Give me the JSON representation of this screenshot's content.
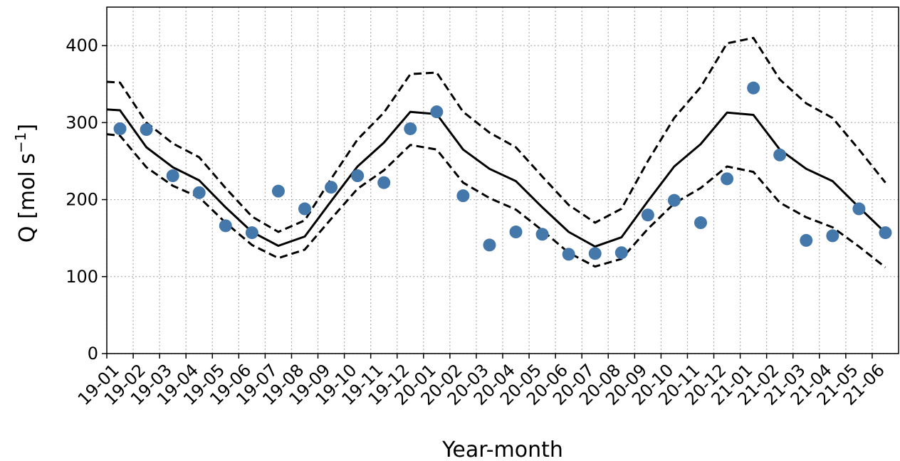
{
  "chart_data": {
    "type": "line",
    "xlabel": "Year-month",
    "ylabel": "Q [mol s",
    "ylabel_exponent": "−1",
    "ylabel_suffix": "]",
    "ylim": [
      0,
      450
    ],
    "yticks": [
      0,
      100,
      200,
      300,
      400
    ],
    "grid": true,
    "x_categories": [
      "19-01",
      "19-02",
      "19-03",
      "19-04",
      "19-05",
      "19-06",
      "19-07",
      "19-08",
      "19-09",
      "19-10",
      "19-11",
      "19-12",
      "20-01",
      "20-02",
      "20-03",
      "20-04",
      "20-05",
      "20-06",
      "20-07",
      "20-08",
      "20-09",
      "20-10",
      "20-11",
      "20-12",
      "21-01",
      "21-02",
      "21-03",
      "21-04",
      "21-05",
      "21-06"
    ],
    "series": [
      {
        "style": "solid-line",
        "color": "#000000",
        "points": [
          [
            0,
            317
          ],
          [
            0.5,
            316
          ],
          [
            1.5,
            268
          ],
          [
            2.5,
            242
          ],
          [
            3.5,
            225
          ],
          [
            4.5,
            190
          ],
          [
            5.5,
            158
          ],
          [
            6.5,
            140
          ],
          [
            7.5,
            152
          ],
          [
            8.5,
            198
          ],
          [
            9.5,
            243
          ],
          [
            10.5,
            274
          ],
          [
            11.5,
            314
          ],
          [
            12.5,
            311
          ],
          [
            13.5,
            265
          ],
          [
            14.5,
            240
          ],
          [
            15.5,
            224
          ],
          [
            16.5,
            190
          ],
          [
            17.5,
            158
          ],
          [
            18.5,
            139
          ],
          [
            19.5,
            151
          ],
          [
            20.5,
            198
          ],
          [
            21.5,
            243
          ],
          [
            22.5,
            272
          ],
          [
            23.5,
            313
          ],
          [
            24.5,
            310
          ],
          [
            25.5,
            265
          ],
          [
            26.5,
            240
          ],
          [
            27.5,
            224
          ],
          [
            28.5,
            190
          ],
          [
            29.5,
            157
          ]
        ]
      },
      {
        "style": "dashed-line",
        "color": "#000000",
        "points": [
          [
            0,
            353
          ],
          [
            0.5,
            352
          ],
          [
            1.5,
            300
          ],
          [
            2.5,
            273
          ],
          [
            3.5,
            255
          ],
          [
            4.5,
            215
          ],
          [
            5.5,
            178
          ],
          [
            6.5,
            158
          ],
          [
            7.5,
            173
          ],
          [
            8.5,
            227
          ],
          [
            9.5,
            278
          ],
          [
            10.5,
            313
          ],
          [
            11.5,
            363
          ],
          [
            12.5,
            365
          ],
          [
            13.5,
            314
          ],
          [
            14.5,
            287
          ],
          [
            15.5,
            268
          ],
          [
            16.5,
            230
          ],
          [
            17.5,
            193
          ],
          [
            18.5,
            170
          ],
          [
            19.5,
            188
          ],
          [
            20.5,
            250
          ],
          [
            21.5,
            306
          ],
          [
            22.5,
            346
          ],
          [
            23.5,
            403
          ],
          [
            24.5,
            410
          ],
          [
            25.5,
            356
          ],
          [
            26.5,
            325
          ],
          [
            27.5,
            306
          ],
          [
            28.5,
            265
          ],
          [
            29.5,
            222
          ]
        ]
      },
      {
        "style": "dashed-line",
        "color": "#000000",
        "points": [
          [
            0,
            285
          ],
          [
            0.5,
            283
          ],
          [
            1.5,
            242
          ],
          [
            2.5,
            218
          ],
          [
            3.5,
            203
          ],
          [
            4.5,
            170
          ],
          [
            5.5,
            141
          ],
          [
            6.5,
            124
          ],
          [
            7.5,
            135
          ],
          [
            8.5,
            175
          ],
          [
            9.5,
            214
          ],
          [
            10.5,
            238
          ],
          [
            11.5,
            271
          ],
          [
            12.5,
            265
          ],
          [
            13.5,
            222
          ],
          [
            14.5,
            202
          ],
          [
            15.5,
            187
          ],
          [
            16.5,
            160
          ],
          [
            17.5,
            131
          ],
          [
            18.5,
            113
          ],
          [
            19.5,
            123
          ],
          [
            20.5,
            162
          ],
          [
            21.5,
            195
          ],
          [
            22.5,
            215
          ],
          [
            23.5,
            243
          ],
          [
            24.5,
            236
          ],
          [
            25.5,
            196
          ],
          [
            26.5,
            177
          ],
          [
            27.5,
            164
          ],
          [
            28.5,
            139
          ],
          [
            29.5,
            112
          ]
        ]
      },
      {
        "style": "points",
        "color": "#4477aa",
        "points": [
          [
            0.5,
            292
          ],
          [
            1.5,
            291
          ],
          [
            2.5,
            231
          ],
          [
            3.5,
            209
          ],
          [
            4.5,
            166
          ],
          [
            5.5,
            157
          ],
          [
            6.5,
            211
          ],
          [
            7.5,
            188
          ],
          [
            8.5,
            216
          ],
          [
            9.5,
            231
          ],
          [
            10.5,
            222
          ],
          [
            11.5,
            292
          ],
          [
            12.5,
            314
          ],
          [
            13.5,
            205
          ],
          [
            14.5,
            141
          ],
          [
            15.5,
            158
          ],
          [
            16.5,
            155
          ],
          [
            17.5,
            129
          ],
          [
            18.5,
            130
          ],
          [
            19.5,
            131
          ],
          [
            20.5,
            180
          ],
          [
            21.5,
            199
          ],
          [
            22.5,
            170
          ],
          [
            23.5,
            227
          ],
          [
            24.5,
            345
          ],
          [
            25.5,
            258
          ],
          [
            26.5,
            147
          ],
          [
            27.5,
            153
          ],
          [
            28.5,
            188
          ],
          [
            29.5,
            157
          ]
        ]
      }
    ]
  }
}
